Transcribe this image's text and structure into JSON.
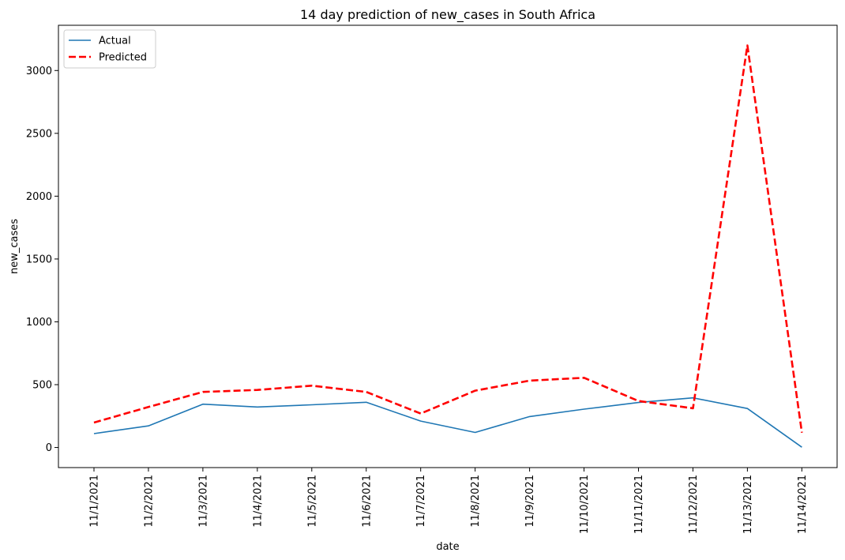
{
  "chart_data": {
    "type": "line",
    "title": "14 day prediction of new_cases in South Africa",
    "xlabel": "date",
    "ylabel": "new_cases",
    "categories": [
      "11/1/2021",
      "11/2/2021",
      "11/3/2021",
      "11/4/2021",
      "11/5/2021",
      "11/6/2021",
      "11/7/2021",
      "11/8/2021",
      "11/9/2021",
      "11/10/2021",
      "11/11/2021",
      "11/12/2021",
      "11/13/2021",
      "11/14/2021"
    ],
    "yticks": [
      0,
      500,
      1000,
      1500,
      2000,
      2500,
      3000
    ],
    "ylim": [
      -160,
      3360
    ],
    "grid": false,
    "legend_position": "top-left",
    "series": [
      {
        "name": "Actual",
        "style": "solid",
        "color": "#1f77b4",
        "values": [
          110,
          172,
          345,
          322,
          340,
          360,
          210,
          120,
          246,
          305,
          358,
          395,
          310,
          2
        ]
      },
      {
        "name": "Predicted",
        "style": "dashed",
        "color": "#ff0000",
        "values": [
          198,
          322,
          442,
          458,
          492,
          442,
          270,
          452,
          532,
          555,
          370,
          312,
          3200,
          118
        ]
      }
    ]
  }
}
